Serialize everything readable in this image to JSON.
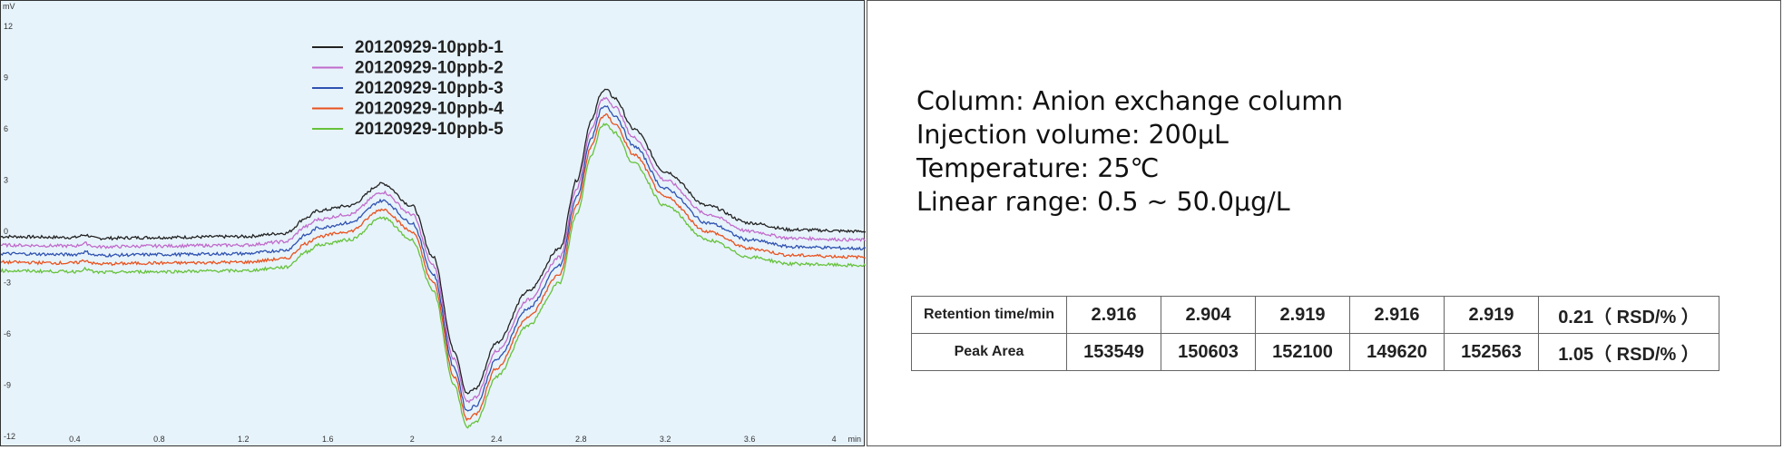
{
  "chart_data": {
    "type": "line",
    "ylabel": "mV",
    "xlabel": "min",
    "x_ticks": [
      "0.4",
      "0.8",
      "1.2",
      "1.6",
      "2",
      "2.4",
      "2.8",
      "3.2",
      "3.6",
      "4"
    ],
    "y_ticks": [
      "12",
      "9",
      "6",
      "3",
      "0",
      "-3",
      "-6",
      "-9",
      "-12"
    ],
    "xlim": [
      0.05,
      4.15
    ],
    "ylim": [
      -12,
      13.5
    ],
    "legend_position": "top-left",
    "series": [
      {
        "name": "20120929-10ppb-1",
        "color": "#222222",
        "offset": 0.0
      },
      {
        "name": "20120929-10ppb-2",
        "color": "#c06bcb",
        "offset": -0.5
      },
      {
        "name": "20120929-10ppb-3",
        "color": "#2f52b0",
        "offset": -1.0
      },
      {
        "name": "20120929-10ppb-4",
        "color": "#e8521e",
        "offset": -1.5
      },
      {
        "name": "20120929-10ppb-5",
        "color": "#66c23b",
        "offset": -2.0
      }
    ],
    "profile": {
      "x": [
        0.05,
        0.4,
        0.45,
        0.5,
        0.8,
        1.2,
        1.4,
        1.5,
        1.55,
        1.7,
        1.86,
        2.0,
        2.1,
        2.2,
        2.26,
        2.3,
        2.4,
        2.55,
        2.7,
        2.78,
        2.85,
        2.9,
        2.92,
        2.96,
        3.05,
        3.2,
        3.4,
        3.6,
        3.8,
        4.15
      ],
      "y": [
        -0.3,
        -0.35,
        -0.2,
        -0.4,
        -0.35,
        -0.3,
        -0.1,
        0.8,
        1.2,
        1.5,
        2.8,
        1.5,
        -1.5,
        -7.0,
        -9.5,
        -9.2,
        -6.5,
        -3.5,
        -1.0,
        3.0,
        6.5,
        8.2,
        8.3,
        7.8,
        6.0,
        3.5,
        1.5,
        0.5,
        0.1,
        0.0
      ]
    }
  },
  "info": {
    "column": "Column: Anion exchange column",
    "injection": "Injection volume: 200μL",
    "temperature": "Temperature: 25℃",
    "range": "Linear range: 0.5 ~ 50.0μg/L"
  },
  "table": {
    "rows": [
      {
        "label": "Retention time/min",
        "values": [
          "2.916",
          "2.904",
          "2.919",
          "2.916",
          "2.919"
        ],
        "rsd": "0.21（ RSD/% ）"
      },
      {
        "label": "Peak Area",
        "values": [
          "153549",
          "150603",
          "152100",
          "149620",
          "152563"
        ],
        "rsd": "1.05（ RSD/% ）"
      }
    ]
  }
}
